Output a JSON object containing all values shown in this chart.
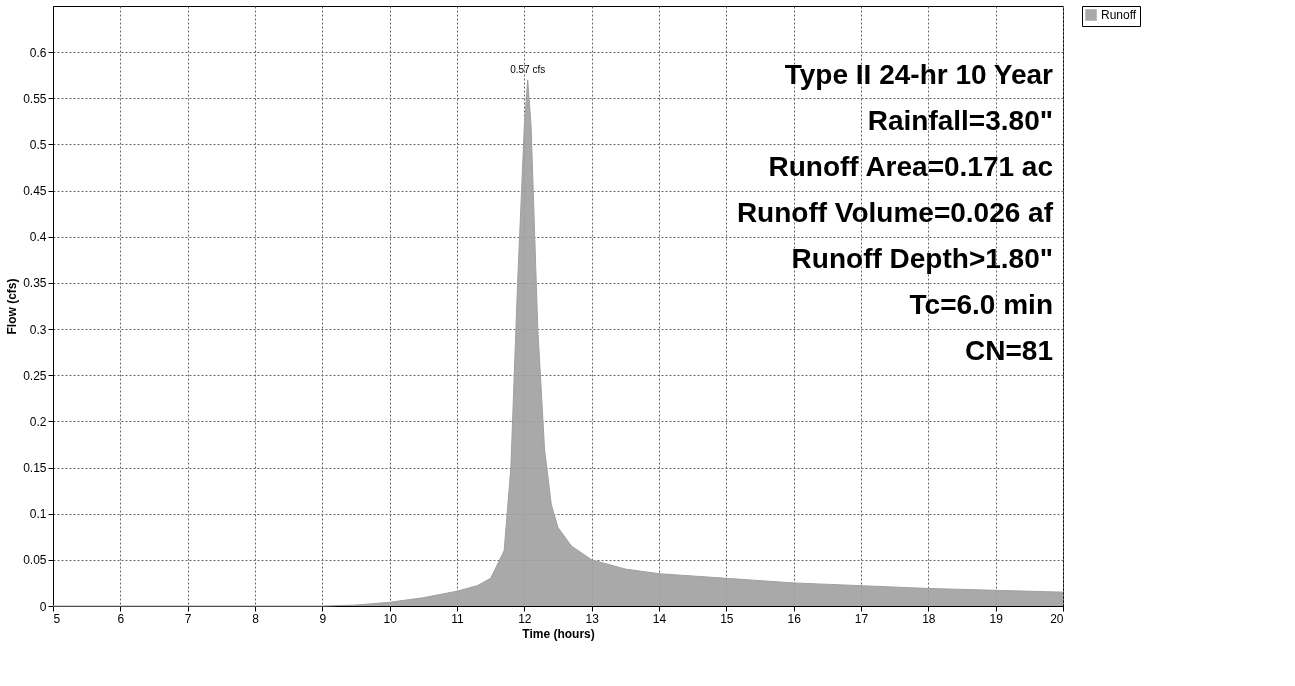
{
  "chart_data": {
    "type": "area",
    "xlabel": "Time  (hours)",
    "ylabel": "Flow  (cfs)",
    "x": [
      5,
      6,
      7,
      8,
      9,
      9.5,
      10,
      10.5,
      11,
      11.3,
      11.5,
      11.7,
      11.8,
      11.9,
      12.0,
      12.05,
      12.1,
      12.2,
      12.3,
      12.4,
      12.5,
      12.7,
      13,
      13.5,
      14,
      15,
      16,
      17,
      18,
      19,
      20
    ],
    "series": [
      {
        "name": "Runoff",
        "color": "#a0a0a0",
        "values": [
          0,
          0,
          0,
          0,
          0,
          0.001,
          0.004,
          0.009,
          0.016,
          0.022,
          0.03,
          0.06,
          0.15,
          0.35,
          0.52,
          0.57,
          0.52,
          0.3,
          0.17,
          0.11,
          0.085,
          0.065,
          0.05,
          0.04,
          0.035,
          0.03,
          0.025,
          0.022,
          0.019,
          0.017,
          0.015
        ]
      }
    ],
    "xlim": [
      5,
      20
    ],
    "xticks": [
      5,
      6,
      7,
      8,
      9,
      10,
      11,
      12,
      13,
      14,
      15,
      16,
      17,
      18,
      19,
      20
    ],
    "ylim": [
      0,
      0.65
    ],
    "yticks": [
      0,
      0.05,
      0.1,
      0.15,
      0.2,
      0.25,
      0.3,
      0.35,
      0.4,
      0.45,
      0.5,
      0.55,
      0.6
    ],
    "grid": true,
    "legend": "top right",
    "annotations": [
      {
        "text": "0.57 cfs",
        "x": 12.05,
        "y": 0.57
      },
      "Type II 24-hr 10 Year",
      "Rainfall=3.80\"",
      "Runoff Area=0.171 ac",
      "Runoff Volume=0.026 af",
      "Runoff Depth>1.80\"",
      "Tc=6.0 min",
      "CN=81"
    ]
  }
}
